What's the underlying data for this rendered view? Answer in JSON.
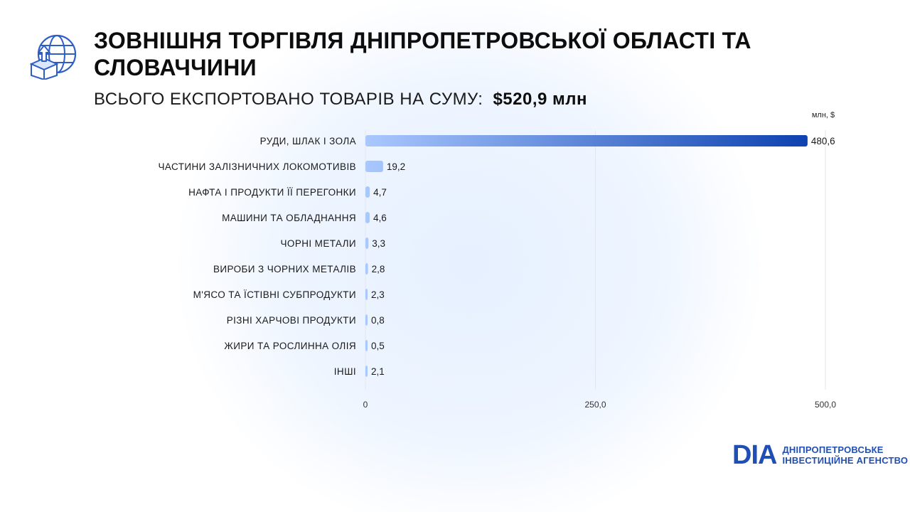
{
  "header": {
    "title": "ЗОВНІШНЯ ТОРГІВЛЯ ДНІПРОПЕТРОВСЬКОЇ ОБЛАСТІ ТА СЛОВАЧЧИНИ",
    "subtitle_prefix": "ВСЬОГО ЕКСПОРТОВАНО ТОВАРІВ НА СУМУ:",
    "subtitle_total": "$520,9 млн",
    "icon": "globe-export-box-icon"
  },
  "chart_data": {
    "type": "bar",
    "orientation": "horizontal",
    "unit_label": "млн, $",
    "categories": [
      "РУДИ, ШЛАК І ЗОЛА",
      "ЧАСТИНИ ЗАЛІЗНИЧНИХ ЛОКОМОТИВІВ",
      "НАФТА І ПРОДУКТИ ЇЇ ПЕРЕГОНКИ",
      "МАШИНИ ТА ОБЛАДНАННЯ",
      "ЧОРНІ МЕТАЛИ",
      "ВИРОБИ З ЧОРНИХ МЕТАЛІВ",
      "М'ЯСО ТА ЇСТІВНІ СУБПРОДУКТИ",
      "РІЗНІ ХАРЧОВІ ПРОДУКТИ",
      "ЖИРИ ТА РОСЛИННА ОЛІЯ",
      "ІНШІ"
    ],
    "values": [
      480.6,
      19.2,
      4.7,
      4.6,
      3.3,
      2.8,
      2.3,
      0.8,
      0.5,
      2.1
    ],
    "value_labels": [
      "480,6",
      "19,2",
      "4,7",
      "4,6",
      "3,3",
      "2,8",
      "2,3",
      "0,8",
      "0,5",
      "2,1"
    ],
    "xlim": [
      0,
      500
    ],
    "ticks": [
      0,
      250,
      500
    ],
    "tick_labels": [
      "0",
      "250,0",
      "500,0"
    ],
    "grid": true,
    "colors": {
      "bar_start": "#a9c8ff",
      "bar_end": "#0b3fae",
      "grid": "#e3e6ec"
    }
  },
  "logo": {
    "mark": "DIA",
    "line1": "ДНІПРОПЕТРОВСЬКЕ",
    "line2": "ІНВЕСТИЦІЙНЕ АГЕНСТВО",
    "color": "#1f4fb5"
  }
}
